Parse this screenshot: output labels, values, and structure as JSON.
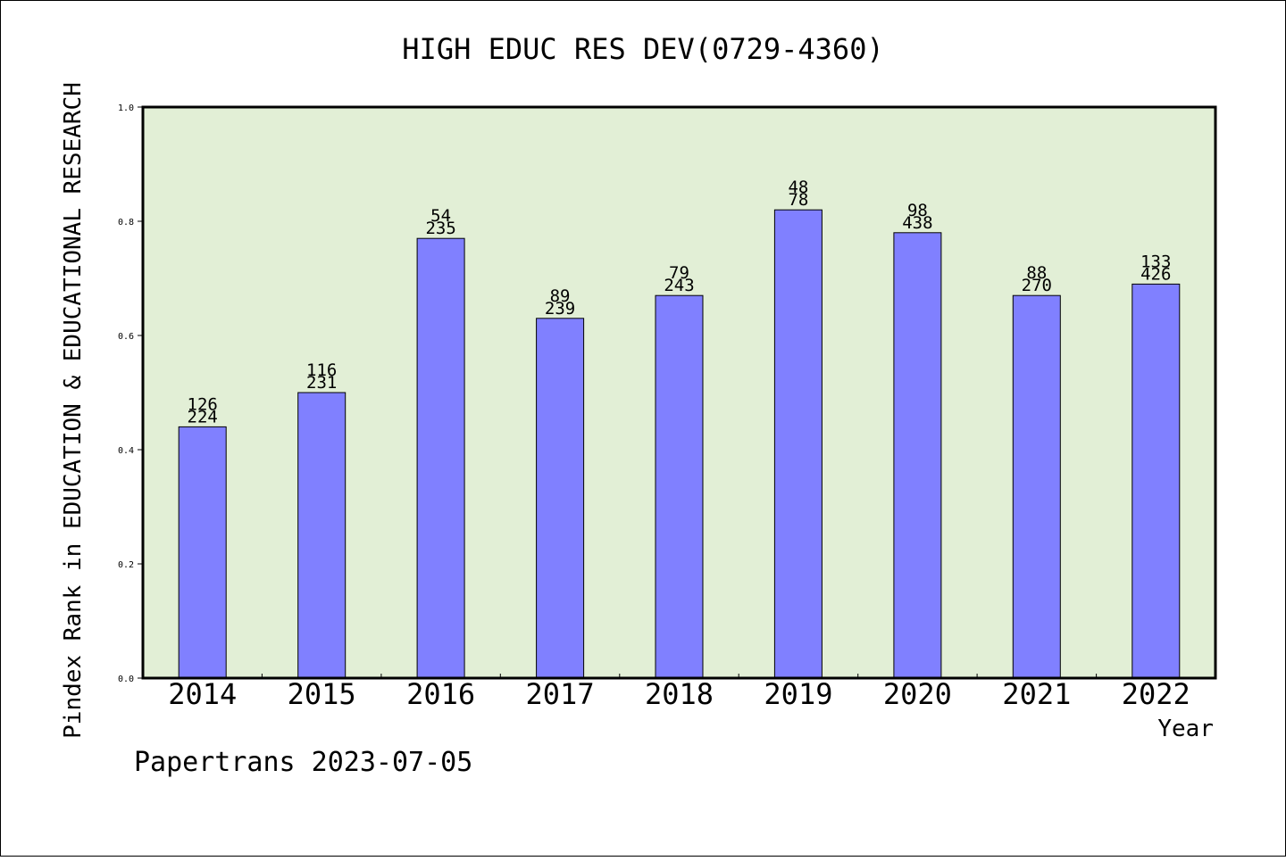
{
  "title": "HIGH EDUC RES DEV(0729-4360)",
  "ylabel": "Pindex Rank in EDUCATION & EDUCATIONAL RESEARCH",
  "xlabel": "Year",
  "footer": "Papertrans 2023-07-05",
  "colors": {
    "plot_bg": "#e2efd6",
    "bar": "#8080ff",
    "frame": "#000000"
  },
  "chart_data": {
    "type": "bar",
    "title": "HIGH EDUC RES DEV(0729-4360)",
    "xlabel": "Year",
    "ylabel": "Pindex Rank in EDUCATION & EDUCATIONAL RESEARCH",
    "categories": [
      "2014",
      "2015",
      "2016",
      "2017",
      "2018",
      "2019",
      "2020",
      "2021",
      "2022"
    ],
    "values": [
      0.44,
      0.5,
      0.77,
      0.63,
      0.67,
      0.82,
      0.78,
      0.67,
      0.69
    ],
    "label_top": [
      "126",
      "116",
      "54",
      "89",
      "79",
      "48",
      "98",
      "88",
      "133"
    ],
    "label_bottom": [
      "224",
      "231",
      "235",
      "239",
      "243",
      "78",
      "438",
      "270",
      "426"
    ],
    "ylim": [
      0,
      1.0
    ],
    "yticks": [
      "0.0",
      "0.2",
      "0.4",
      "0.6",
      "0.8",
      "1.0"
    ],
    "grid": false,
    "legend": "none"
  }
}
